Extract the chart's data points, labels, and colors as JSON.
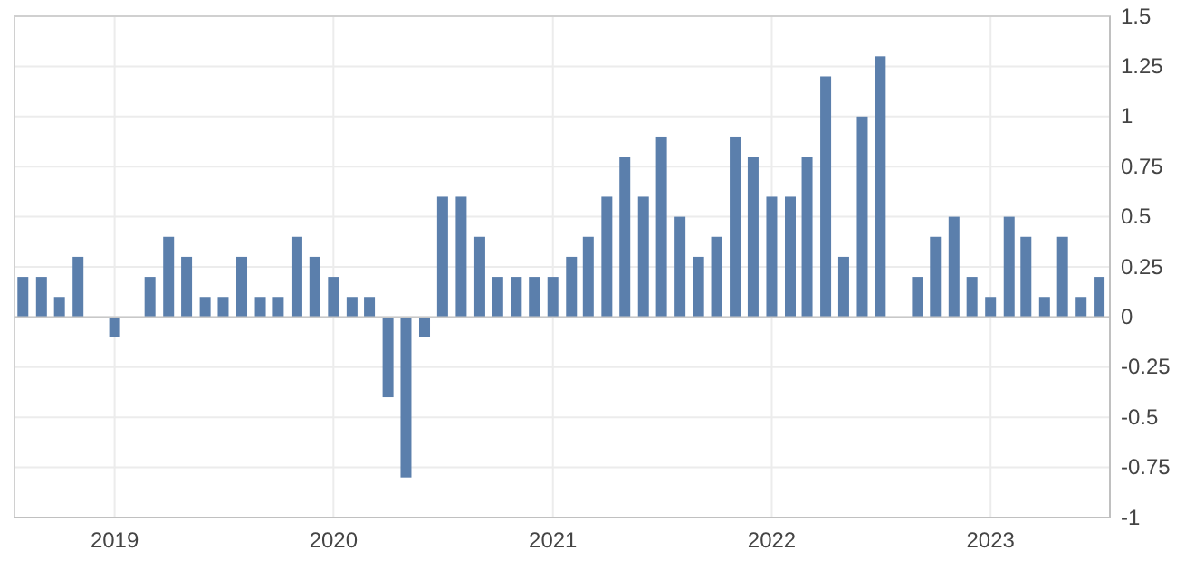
{
  "chart_data": {
    "type": "bar",
    "x": [
      "2018-08",
      "2018-09",
      "2018-10",
      "2018-11",
      "2018-12",
      "2019-01",
      "2019-02",
      "2019-03",
      "2019-04",
      "2019-05",
      "2019-06",
      "2019-07",
      "2019-08",
      "2019-09",
      "2019-10",
      "2019-11",
      "2019-12",
      "2020-01",
      "2020-02",
      "2020-03",
      "2020-04",
      "2020-05",
      "2020-06",
      "2020-07",
      "2020-08",
      "2020-09",
      "2020-10",
      "2020-11",
      "2020-12",
      "2021-01",
      "2021-02",
      "2021-03",
      "2021-04",
      "2021-05",
      "2021-06",
      "2021-07",
      "2021-08",
      "2021-09",
      "2021-10",
      "2021-11",
      "2021-12",
      "2022-01",
      "2022-02",
      "2022-03",
      "2022-04",
      "2022-05",
      "2022-06",
      "2022-07",
      "2022-08",
      "2022-09",
      "2022-10",
      "2022-11",
      "2022-12",
      "2023-01",
      "2023-02",
      "2023-03",
      "2023-04",
      "2023-05",
      "2023-06",
      "2023-07"
    ],
    "values": [
      0.2,
      0.2,
      0.1,
      0.3,
      0,
      -0.1,
      0,
      0.2,
      0.4,
      0.3,
      0.1,
      0.1,
      0.3,
      0.1,
      0.1,
      0.4,
      0.3,
      0.2,
      0.1,
      0.1,
      -0.4,
      -0.8,
      -0.1,
      0.6,
      0.6,
      0.4,
      0.2,
      0.2,
      0.2,
      0.2,
      0.3,
      0.4,
      0.6,
      0.8,
      0.6,
      0.9,
      0.5,
      0.3,
      0.4,
      0.9,
      0.8,
      0.6,
      0.6,
      0.8,
      1.2,
      0.3,
      1.0,
      1.3,
      0,
      0.2,
      0.4,
      0.5,
      0.2,
      0.1,
      0.5,
      0.4,
      0.1,
      0.4,
      0.1,
      0.2
    ],
    "color": "#5b7fac",
    "xlim": [
      "2018-07-18",
      "2023-07-19"
    ],
    "xticks": [
      {
        "value": "2019-01-01",
        "label": "2019"
      },
      {
        "value": "2020-01-01",
        "label": "2020"
      },
      {
        "value": "2021-01-01",
        "label": "2021"
      },
      {
        "value": "2022-01-01",
        "label": "2022"
      },
      {
        "value": "2023-01-01",
        "label": "2023"
      }
    ],
    "ylim": [
      -1,
      1.5
    ],
    "yticks": [
      -1,
      -0.75,
      -0.5,
      -0.25,
      0,
      0.25,
      0.5,
      0.75,
      1,
      1.25,
      1.5
    ],
    "grid": true
  }
}
